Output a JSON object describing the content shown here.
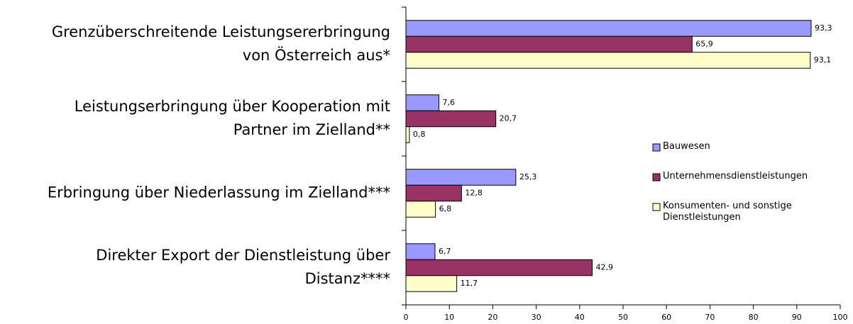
{
  "chart_data": {
    "type": "bar",
    "orientation": "horizontal",
    "categories": [
      [
        "Grenzüberschreitende Leistungsererbringung",
        "von Österreich aus*"
      ],
      [
        "Leistungserbringung über Kooperation mit",
        "Partner im Zielland**"
      ],
      [
        "Erbringung über Niederlassung im Zielland***"
      ],
      [
        "Direkter Export der Dienstleistung über",
        "Distanz****"
      ]
    ],
    "series": [
      {
        "name": "Bauwesen",
        "color": "#9999ff",
        "values": [
          93.3,
          7.6,
          25.3,
          6.7
        ],
        "value_labels": [
          "93,3",
          "7,6",
          "25,3",
          "6,7"
        ]
      },
      {
        "name": "Unternehmensdienstleistungen",
        "color": "#993366",
        "values": [
          65.9,
          20.7,
          12.8,
          42.9
        ],
        "value_labels": [
          "65,9",
          "20,7",
          "12,8",
          "42,9"
        ]
      },
      {
        "name": "Konsumenten- und sonstige Dienstleistungen",
        "color": "#ffffcc",
        "values": [
          93.1,
          0.8,
          6.8,
          11.7
        ],
        "value_labels": [
          "93,1",
          "0,8",
          "6,8",
          "11,7"
        ]
      }
    ],
    "xlim": [
      0,
      100
    ],
    "xticks": [
      0,
      10,
      20,
      30,
      40,
      50,
      60,
      70,
      80,
      90,
      100
    ],
    "grid": false,
    "legend": "right"
  }
}
